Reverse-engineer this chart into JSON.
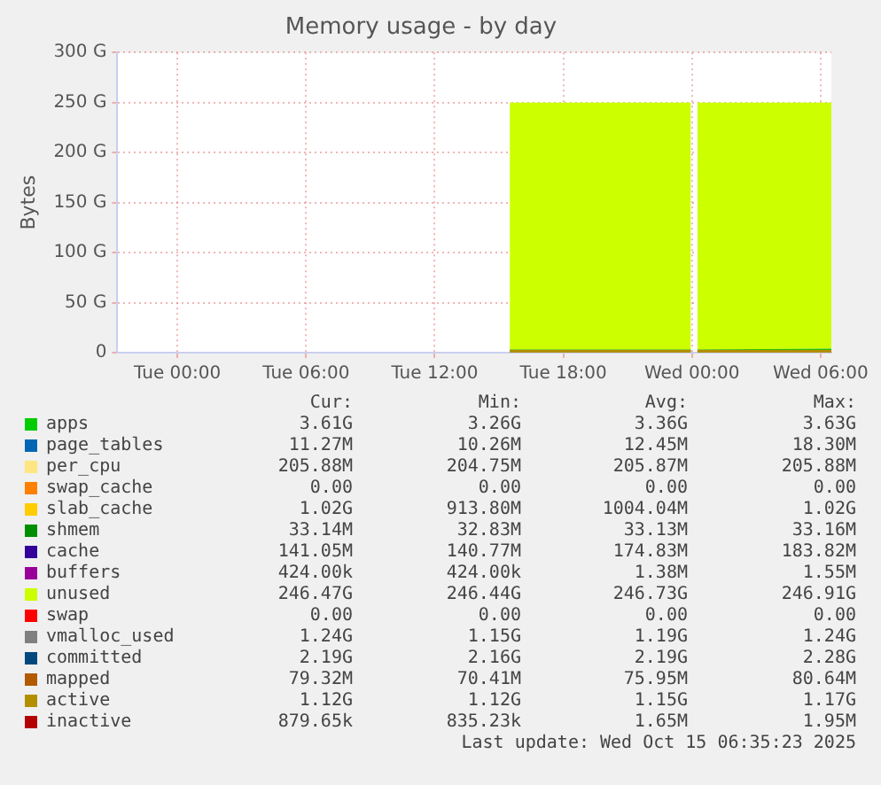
{
  "chart_data": {
    "type": "area",
    "title": "Memory usage - by day",
    "ylabel": "Bytes",
    "stacked": true,
    "grid": true,
    "legend": "bottom",
    "marker": "none",
    "x": [
      "2025-10-14T15:30",
      "2025-10-14T23:57",
      "2025-10-15T00:09",
      "2025-10-15T00:15",
      "2025-10-15T06:30"
    ],
    "xlim": [
      "2025-10-13T21:12",
      "2025-10-15T06:30"
    ],
    "xticks": [
      {
        "value": "2025-10-14T00:00",
        "label": "Tue 00:00"
      },
      {
        "value": "2025-10-14T06:00",
        "label": "Tue 06:00"
      },
      {
        "value": "2025-10-14T12:00",
        "label": "Tue 12:00"
      },
      {
        "value": "2025-10-14T18:00",
        "label": "Tue 18:00"
      },
      {
        "value": "2025-10-15T00:00",
        "label": "Wed 00:00"
      },
      {
        "value": "2025-10-15T06:00",
        "label": "Wed 06:00"
      }
    ],
    "ylim": [
      0,
      300
    ],
    "yticks": [
      {
        "value": 0,
        "label": "0"
      },
      {
        "value": 50,
        "label": "50 G"
      },
      {
        "value": 100,
        "label": "100 G"
      },
      {
        "value": 150,
        "label": "150 G"
      },
      {
        "value": 200,
        "label": "200 G"
      },
      {
        "value": 250,
        "label": "250 G"
      },
      {
        "value": 300,
        "label": "300 G"
      }
    ],
    "series": [
      {
        "name": "apps",
        "color": "#00cc00",
        "values": [
          3,
          3,
          null,
          3,
          4
        ]
      },
      {
        "name": "page_tables",
        "color": "#0066b3",
        "values": [
          null,
          null,
          null,
          null,
          null
        ]
      },
      {
        "name": "per_cpu",
        "color": "#ffe680",
        "values": [
          null,
          null,
          null,
          null,
          null
        ]
      },
      {
        "name": "swap_cache",
        "color": "#ff8000",
        "values": [
          null,
          null,
          null,
          null,
          null
        ]
      },
      {
        "name": "slab_cache",
        "color": "#ffcc00",
        "values": [
          null,
          null,
          null,
          null,
          null
        ]
      },
      {
        "name": "shmem",
        "type": "line",
        "color": "#008f00",
        "values": [
          null,
          null,
          null,
          null,
          null
        ]
      },
      {
        "name": "cache",
        "color": "#330099",
        "values": [
          null,
          null,
          null,
          null,
          null
        ]
      },
      {
        "name": "buffers",
        "color": "#990099",
        "values": [
          null,
          null,
          null,
          null,
          null
        ]
      },
      {
        "name": "unused",
        "color": "#ccff00",
        "values": [
          247,
          247,
          null,
          247,
          246
        ]
      },
      {
        "name": "swap",
        "color": "#ff0000",
        "values": [
          null,
          null,
          null,
          null,
          null
        ]
      },
      {
        "name": "vmalloc_used",
        "type": "line",
        "color": "#808080",
        "values": [
          null,
          null,
          null,
          null,
          null
        ]
      },
      {
        "name": "committed",
        "type": "line",
        "color": "#00487d",
        "values": [
          null,
          null,
          null,
          null,
          null
        ]
      },
      {
        "name": "mapped",
        "type": "line",
        "color": "#b35a00",
        "values": [
          null,
          null,
          null,
          null,
          null
        ]
      },
      {
        "name": "active",
        "type": "line",
        "color": "#b38f00",
        "values": [
          1,
          1,
          null,
          1,
          1
        ]
      },
      {
        "name": "inactive",
        "type": "line",
        "color": "#b30000",
        "values": [
          null,
          null,
          null,
          null,
          null
        ]
      }
    ],
    "annotations": [
      "Cur:",
      "Min:",
      "Avg:",
      "Max:",
      "3.61G",
      "3.26G",
      "3.36G",
      "3.63G",
      "11.27M",
      "10.26M",
      "12.45M",
      "18.30M",
      "205.88M",
      "204.75M",
      "205.87M",
      "205.88M",
      "0.00",
      "0.00",
      "0.00",
      "0.00",
      "1.02G",
      "913.80M",
      "1004.04M",
      "1.02G",
      "33.14M",
      "32.83M",
      "33.13M",
      "33.16M",
      "141.05M",
      "140.77M",
      "174.83M",
      "183.82M",
      "424.00k",
      "424.00k",
      "1.38M",
      "1.55M",
      "246.47G",
      "246.44G",
      "246.73G",
      "246.91G",
      "0.00",
      "0.00",
      "0.00",
      "0.00",
      "1.24G",
      "1.15G",
      "1.19G",
      "1.24G",
      "2.19G",
      "2.16G",
      "2.19G",
      "2.28G",
      "79.32M",
      "70.41M",
      "75.95M",
      "80.64M",
      "1.12G",
      "1.12G",
      "1.15G",
      "1.17G",
      "879.65k",
      "835.23k",
      "1.65M",
      "1.95M",
      "Last update: Wed Oct 15 06:35:23 2025"
    ]
  }
}
